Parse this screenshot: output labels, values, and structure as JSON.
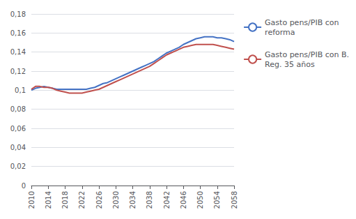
{
  "chart_data": {
    "type": "line",
    "x": [
      2010,
      2011,
      2012,
      2013,
      2014,
      2015,
      2016,
      2017,
      2018,
      2019,
      2020,
      2021,
      2022,
      2023,
      2024,
      2025,
      2026,
      2027,
      2028,
      2029,
      2030,
      2031,
      2032,
      2033,
      2034,
      2035,
      2036,
      2037,
      2038,
      2039,
      2040,
      2041,
      2042,
      2043,
      2044,
      2045,
      2046,
      2047,
      2048,
      2049,
      2050,
      2051,
      2052,
      2053,
      2054,
      2055,
      2056,
      2057,
      2058
    ],
    "series": [
      {
        "name": "Gasto pens/PIB con\nreforma",
        "color": "#4472C4",
        "values": [
          0.1,
          0.102,
          0.103,
          0.104,
          0.103,
          0.102,
          0.101,
          0.101,
          0.101,
          0.101,
          0.101,
          0.101,
          0.101,
          0.101,
          0.102,
          0.103,
          0.105,
          0.107,
          0.108,
          0.11,
          0.112,
          0.114,
          0.116,
          0.118,
          0.12,
          0.122,
          0.124,
          0.126,
          0.128,
          0.13,
          0.133,
          0.136,
          0.139,
          0.141,
          0.143,
          0.145,
          0.148,
          0.15,
          0.152,
          0.154,
          0.155,
          0.156,
          0.156,
          0.156,
          0.155,
          0.155,
          0.154,
          0.153,
          0.151
        ]
      },
      {
        "name": "Gasto pens/PIB con B.\nReg. 35 años",
        "color": "#C0504D",
        "values": [
          0.101,
          0.104,
          0.104,
          0.103,
          0.103,
          0.102,
          0.1,
          0.099,
          0.098,
          0.097,
          0.097,
          0.097,
          0.097,
          0.098,
          0.099,
          0.1,
          0.101,
          0.103,
          0.105,
          0.107,
          0.109,
          0.111,
          0.113,
          0.115,
          0.117,
          0.119,
          0.121,
          0.123,
          0.125,
          0.128,
          0.131,
          0.134,
          0.137,
          0.139,
          0.141,
          0.143,
          0.145,
          0.146,
          0.147,
          0.148,
          0.148,
          0.148,
          0.148,
          0.148,
          0.147,
          0.146,
          0.145,
          0.144,
          0.143
        ]
      }
    ],
    "xlim": [
      2010,
      2058
    ],
    "xticks": [
      2010,
      2014,
      2018,
      2022,
      2026,
      2030,
      2034,
      2038,
      2042,
      2046,
      2050,
      2054,
      2058
    ],
    "ylim": [
      0,
      0.18
    ],
    "yticks": [
      0,
      {
        "value": 0.02,
        "label": "0,02"
      },
      {
        "value": 0.04,
        "label": "0,04"
      },
      {
        "value": 0.06,
        "label": "0,06"
      },
      {
        "value": 0.08,
        "label": "0,08"
      },
      {
        "value": 0.1,
        "label": "0,1"
      },
      {
        "value": 0.12,
        "label": "0,12"
      },
      {
        "value": 0.14,
        "label": "0,14"
      },
      {
        "value": 0.16,
        "label": "0,16"
      },
      {
        "value": 0.18,
        "label": "0,18"
      }
    ],
    "grid": true,
    "legend": "right"
  }
}
